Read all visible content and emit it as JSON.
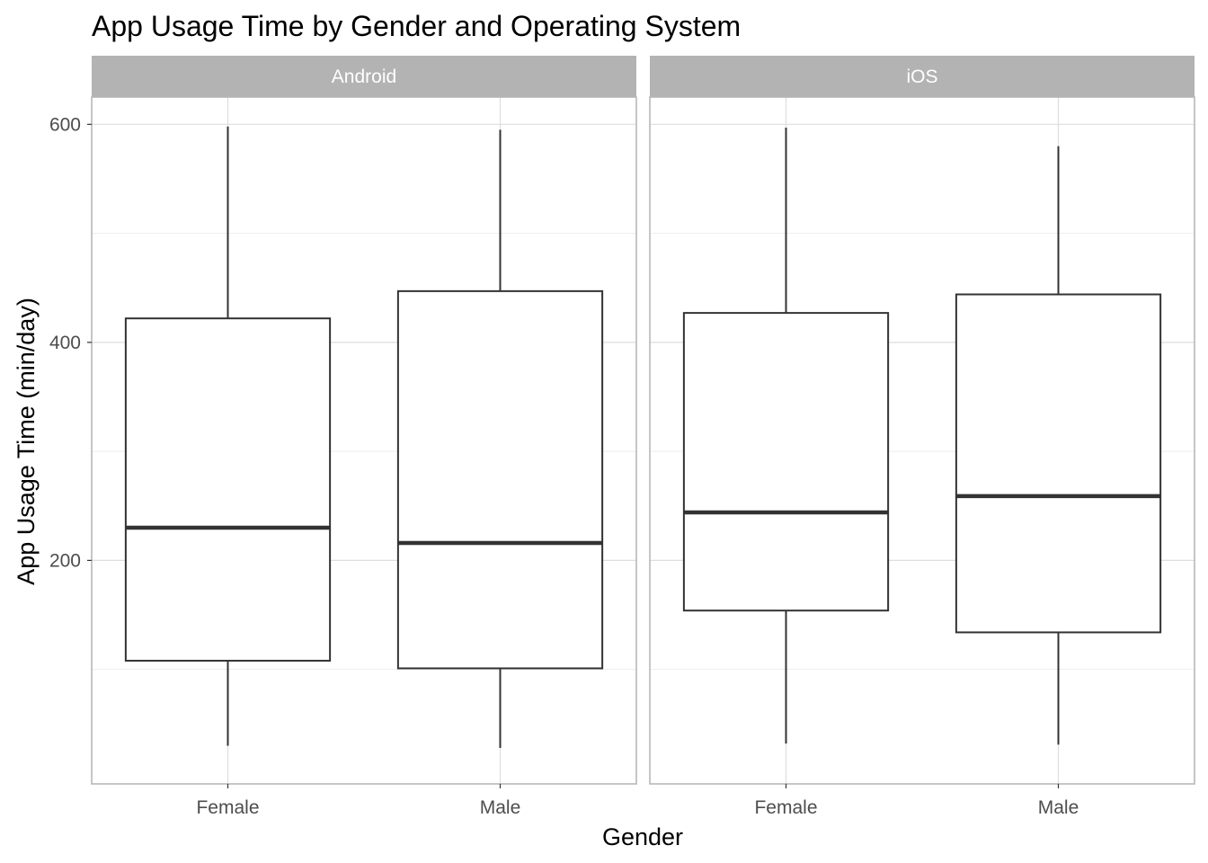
{
  "chart_data": {
    "type": "boxplot",
    "title": "App Usage Time by Gender and Operating System",
    "xlabel": "Gender",
    "ylabel": "App Usage Time (min/day)",
    "categories": [
      "Female",
      "Male"
    ],
    "y_ticks": [
      200,
      400,
      600
    ],
    "ylim": [
      -5,
      625
    ],
    "grid": true,
    "facets": [
      {
        "label": "Android",
        "boxes": [
          {
            "category": "Female",
            "min": 30,
            "q1": 108,
            "median": 230,
            "q3": 422,
            "max": 598
          },
          {
            "category": "Male",
            "min": 28,
            "q1": 101,
            "median": 216,
            "q3": 447,
            "max": 595
          }
        ]
      },
      {
        "label": "iOS",
        "boxes": [
          {
            "category": "Female",
            "min": 32,
            "q1": 154,
            "median": 244,
            "q3": 427,
            "max": 597
          },
          {
            "category": "Male",
            "min": 31,
            "q1": 134,
            "median": 259,
            "q3": 444,
            "max": 580
          }
        ]
      }
    ],
    "colors": {
      "strip_fill": "#b3b3b3",
      "panel_border": "#b3b3b3",
      "grid_major": "#dedede",
      "grid_minor": "#ededed",
      "box_line": "#333333"
    }
  }
}
